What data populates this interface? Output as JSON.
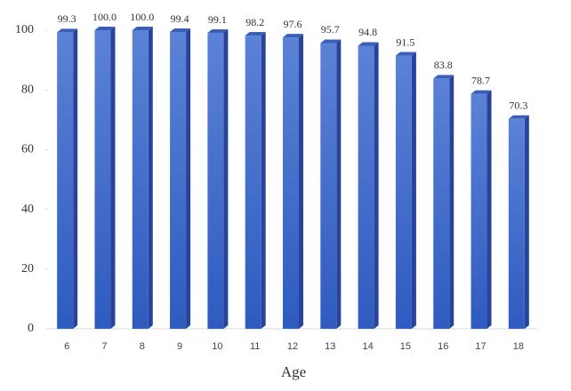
{
  "chart_data": {
    "type": "bar",
    "x_label": "Age",
    "categories": [
      "6",
      "7",
      "8",
      "9",
      "10",
      "11",
      "12",
      "13",
      "14",
      "15",
      "16",
      "17",
      "18"
    ],
    "values": [
      99.3,
      100,
      100,
      99.4,
      99.1,
      98.2,
      97.6,
      95.7,
      94.8,
      91.5,
      83.8,
      78.7,
      70.3
    ],
    "value_labels": [
      "99.3",
      "100.0",
      "100.0",
      "99.4",
      "99.1",
      "98.2",
      "97.6",
      "95.7",
      "94.8",
      "91.5",
      "83.8",
      "78.7",
      "70.3"
    ],
    "color": "#4472c4",
    "ylim": [
      0,
      100
    ],
    "yticks": [
      0,
      20,
      40,
      60,
      80,
      100
    ],
    "grid": false
  }
}
